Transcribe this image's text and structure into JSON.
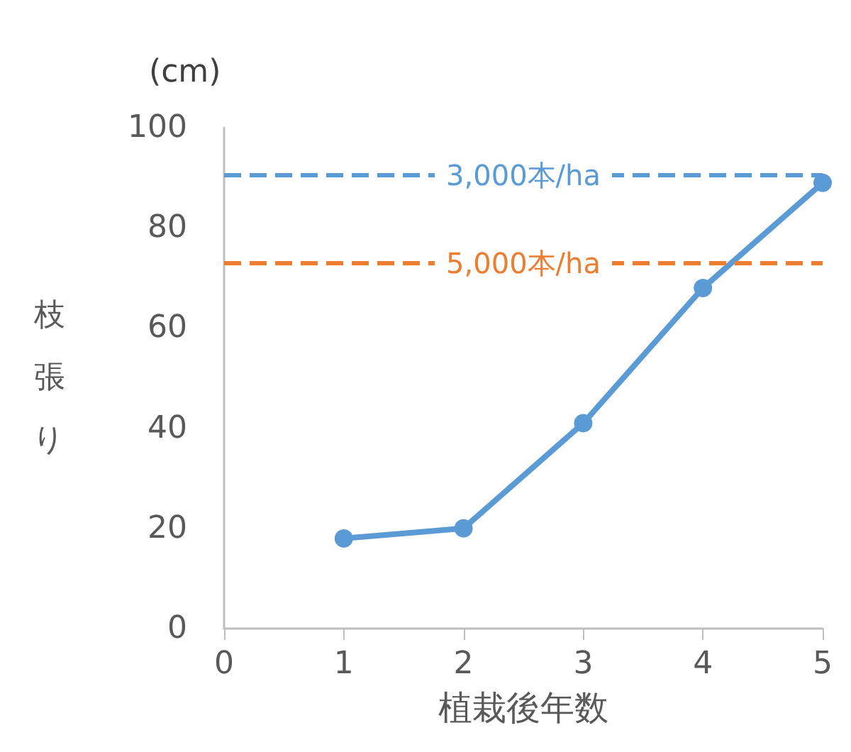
{
  "chart_data": {
    "type": "line",
    "xlabel": "植栽後年数",
    "ylabel": "枝張り",
    "annotations": [
      "(cm)"
    ],
    "x": [
      1,
      2,
      3,
      4,
      5
    ],
    "series": [
      {
        "color": "#5b9bd5",
        "values": [
          18,
          20,
          41,
          68,
          89
        ]
      }
    ],
    "xlim": [
      0,
      5
    ],
    "xticks": [
      0,
      1,
      2,
      3,
      4,
      5
    ],
    "ylim": [
      0,
      100
    ],
    "yticks": [
      0,
      20,
      40,
      60,
      80,
      100
    ],
    "ref_lines": [
      {
        "axis": "y",
        "value": 90.5,
        "label": "3,000本/ha",
        "color": "#5b9bd5",
        "line_style": "dashed"
      },
      {
        "axis": "y",
        "value": 73,
        "label": "5,000本/ha",
        "color": "#ed7d31",
        "line_style": "dashed"
      }
    ],
    "marker": "circle",
    "grid": false
  }
}
